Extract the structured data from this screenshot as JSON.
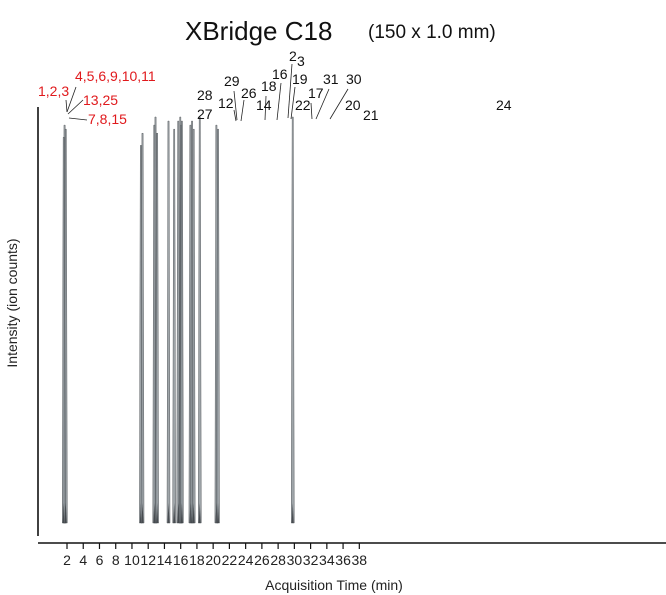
{
  "chart_data": {
    "type": "line",
    "title": "XBridge C18",
    "subtitle": "(150 x 1.0 mm)",
    "xlabel": "Acquisition Time (min)",
    "ylabel": "Intensity (ion counts)",
    "xlim": [
      0.5,
      39.5
    ],
    "x_ticks": [
      2,
      4,
      6,
      8,
      10,
      12,
      14,
      16,
      18,
      20,
      22,
      24,
      26,
      28,
      30,
      32,
      34,
      36,
      38
    ],
    "x_tick_labels": [
      "2",
      "4",
      "6",
      "8",
      "10",
      "12",
      "14",
      "16",
      "18",
      "20",
      "22",
      "24",
      "26",
      "28",
      "30",
      "32",
      "34",
      "36",
      "38"
    ],
    "colors": {
      "peak": "#8f969b",
      "peak_dark": "#3f4448",
      "highlight_label": "#e0191c",
      "label": "#111111",
      "axis": "#111111"
    },
    "peaks": [
      {
        "t": 1.7,
        "h": 0.98,
        "w": 0.1,
        "label_id": "p1"
      },
      {
        "t": 1.85,
        "h": 0.97,
        "w": 0.1,
        "label_id": "p2"
      },
      {
        "t": 1.6,
        "h": 0.95,
        "w": 0.1,
        "label_id": "p3"
      },
      {
        "t": 11.1,
        "h": 0.93,
        "w": 0.16,
        "label_id": "l27"
      },
      {
        "t": 11.3,
        "h": 0.96,
        "w": 0.12,
        "label_id": "l28"
      },
      {
        "t": 12.9,
        "h": 1.0,
        "w": 0.22,
        "label_id": "l12"
      },
      {
        "t": 12.75,
        "h": 0.98,
        "w": 0.16,
        "label_id": "l29"
      },
      {
        "t": 13.1,
        "h": 0.96,
        "w": 0.18,
        "label_id": "l26"
      },
      {
        "t": 14.5,
        "h": 0.99,
        "w": 0.2,
        "label_id": "l14"
      },
      {
        "t": 15.2,
        "h": 0.97,
        "w": 0.14,
        "label_id": "l18"
      },
      {
        "t": 15.7,
        "h": 0.99,
        "w": 0.18,
        "label_id": "l16"
      },
      {
        "t": 15.95,
        "h": 1.0,
        "w": 0.22,
        "label_id": "l2"
      },
      {
        "t": 16.05,
        "h": 0.98,
        "w": 0.2,
        "label_id": "l3"
      },
      {
        "t": 16.15,
        "h": 0.99,
        "w": 0.18,
        "label_id": "l19"
      },
      {
        "t": 17.2,
        "h": 0.98,
        "w": 0.16,
        "label_id": "l22"
      },
      {
        "t": 17.4,
        "h": 0.99,
        "w": 0.18,
        "label_id": "l17"
      },
      {
        "t": 17.6,
        "h": 0.97,
        "w": 0.14,
        "label_id": "l31"
      },
      {
        "t": 18.35,
        "h": 1.0,
        "w": 0.3,
        "label_id": "l30"
      },
      {
        "t": 20.4,
        "h": 0.98,
        "w": 0.18,
        "label_id": "l20"
      },
      {
        "t": 20.6,
        "h": 0.97,
        "w": 0.16,
        "label_id": "l21"
      },
      {
        "t": 29.8,
        "h": 1.0,
        "w": 0.24,
        "label_id": "l24"
      }
    ],
    "peak_labels": [
      {
        "id": "p1",
        "text": "1,2,3",
        "color": "red"
      },
      {
        "id": "p2",
        "text": "4,5,6,9,10,11",
        "color": "red"
      },
      {
        "id": "p3a",
        "text": "13,25",
        "color": "red"
      },
      {
        "id": "p3",
        "text": "7,8,15",
        "color": "red"
      },
      {
        "id": "l28",
        "text": "28",
        "color": "black"
      },
      {
        "id": "l27",
        "text": "27",
        "color": "black"
      },
      {
        "id": "l29",
        "text": "29",
        "color": "black"
      },
      {
        "id": "l12",
        "text": "12",
        "color": "black"
      },
      {
        "id": "l26",
        "text": "26",
        "color": "black"
      },
      {
        "id": "l18",
        "text": "18",
        "color": "black"
      },
      {
        "id": "l14",
        "text": "14",
        "color": "black"
      },
      {
        "id": "l16",
        "text": "16",
        "color": "black"
      },
      {
        "id": "l2",
        "text": "2",
        "color": "black"
      },
      {
        "id": "l3",
        "text": "3",
        "color": "black"
      },
      {
        "id": "l19",
        "text": "19",
        "color": "black"
      },
      {
        "id": "l22",
        "text": "22",
        "color": "black"
      },
      {
        "id": "l17",
        "text": "17",
        "color": "black"
      },
      {
        "id": "l31",
        "text": "31",
        "color": "black"
      },
      {
        "id": "l30",
        "text": "30",
        "color": "black"
      },
      {
        "id": "l20",
        "text": "20",
        "color": "black"
      },
      {
        "id": "l21",
        "text": "21",
        "color": "black"
      },
      {
        "id": "l24",
        "text": "24",
        "color": "black"
      }
    ]
  }
}
